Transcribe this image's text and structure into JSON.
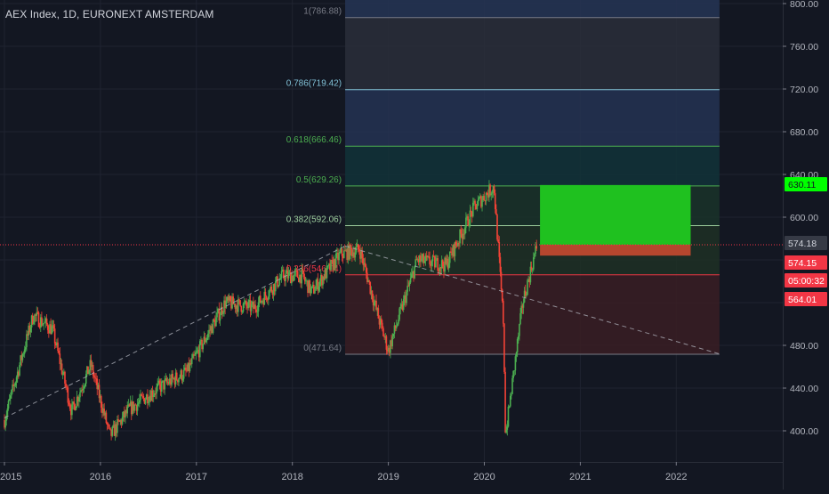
{
  "header": {
    "title": "AEX Index, 1D, EURONEXT AMSTERDAM"
  },
  "price_axis": {
    "ticks": [
      "400.00",
      "440.00",
      "480.00",
      "600.00",
      "640.00",
      "680.00",
      "720.00",
      "760.00",
      "800.00"
    ],
    "tick_values": [
      400,
      440,
      480,
      600,
      640,
      680,
      720,
      760,
      800
    ]
  },
  "time_axis": {
    "labels": [
      "2015",
      "2016",
      "2017",
      "2018",
      "2019",
      "2020",
      "2021",
      "2022"
    ]
  },
  "price_badges": [
    {
      "label": "630.11",
      "value": 630.11,
      "bg": "#00ff00",
      "fg": "#131722"
    },
    {
      "label": "574.18",
      "value": 574.18,
      "bg": "#363a45",
      "fg": "#d1d4dc"
    },
    {
      "label": "574.15",
      "value": 574.15,
      "bg": "#f23645",
      "fg": "#ffffff"
    },
    {
      "label": "05:00:32",
      "value": 554.5,
      "bg": "#f23645",
      "fg": "#ffffff"
    },
    {
      "label": "564.01",
      "value": 564.01,
      "bg": "#f23645",
      "fg": "#ffffff"
    }
  ],
  "chart_data": {
    "type": "candlestick",
    "title": "AEX Index, 1D, EURONEXT AMSTERDAM",
    "ylim": [
      375,
      805
    ],
    "xlim": [
      2015.0,
      2023.0
    ],
    "grid": true,
    "series_summary": [
      {
        "date": "2015.0",
        "close": 410
      },
      {
        "date": "2015.3",
        "close": 508
      },
      {
        "date": "2015.5",
        "close": 495
      },
      {
        "date": "2015.7",
        "close": 418
      },
      {
        "date": "2015.9",
        "close": 462
      },
      {
        "date": "2016.1",
        "close": 395
      },
      {
        "date": "2016.3",
        "close": 420
      },
      {
        "date": "2016.6",
        "close": 440
      },
      {
        "date": "2016.9",
        "close": 455
      },
      {
        "date": "2017.3",
        "close": 520
      },
      {
        "date": "2017.6",
        "close": 515
      },
      {
        "date": "2017.9",
        "close": 545
      },
      {
        "date": "2018.1",
        "close": 545
      },
      {
        "date": "2018.2",
        "close": 530
      },
      {
        "date": "2018.5",
        "close": 565
      },
      {
        "date": "2018.7",
        "close": 570
      },
      {
        "date": "2018.9",
        "close": 505
      },
      {
        "date": "2019.0",
        "close": 475
      },
      {
        "date": "2019.3",
        "close": 560
      },
      {
        "date": "2019.6",
        "close": 555
      },
      {
        "date": "2019.9",
        "close": 610
      },
      {
        "date": "2020.1",
        "close": 629
      },
      {
        "date": "2020.2",
        "close": 500
      },
      {
        "date": "2020.22",
        "close": 395
      },
      {
        "date": "2020.4",
        "close": 520
      },
      {
        "date": "2020.55",
        "close": 574.18
      }
    ],
    "fibonacci": {
      "levels": [
        {
          "ratio": "1",
          "price": 786.88,
          "label": "1(786.88)",
          "color": "#787b86",
          "fill": "#2a2e39"
        },
        {
          "ratio": "0.786",
          "price": 719.42,
          "label": "0.786(719.42)",
          "color": "#81c1d6",
          "fill": "#253352"
        },
        {
          "ratio": "0.618",
          "price": 666.46,
          "label": "0.618(666.46)",
          "color": "#4caf50",
          "fill": "#123338"
        },
        {
          "ratio": "0.5",
          "price": 629.26,
          "label": "0.5(629.26)",
          "color": "#4caf50",
          "fill": "#1a3329"
        },
        {
          "ratio": "0.382",
          "price": 592.06,
          "label": "0.382(592.06)",
          "color": "#9ccc9c",
          "fill": "#1e3025"
        },
        {
          "ratio": "0.236",
          "price": 546.04,
          "label": "0.236(546.04)",
          "color": "#f23645",
          "fill": "#3a1d23"
        },
        {
          "ratio": "0",
          "price": 471.64,
          "label": "0(471.64)",
          "color": "#787b86",
          "fill": ""
        }
      ],
      "x_start": 2018.55,
      "x_end": 2022.45
    },
    "trendlines": [
      {
        "from": {
          "date": "2015.0",
          "price": 412
        },
        "to": {
          "date": "2018.55",
          "price": 573
        },
        "style": "dashed"
      },
      {
        "from": {
          "date": "2018.55",
          "price": 573
        },
        "to": {
          "date": "2022.45",
          "price": 472
        },
        "style": "dashed"
      }
    ],
    "horizontal_line": {
      "price": 574.18,
      "style": "dotted",
      "color": "#f23645"
    },
    "position_box": {
      "x_start": 2020.58,
      "x_end": 2022.15,
      "entry": 574.18,
      "target": 630.11,
      "stop": 564.01
    }
  }
}
